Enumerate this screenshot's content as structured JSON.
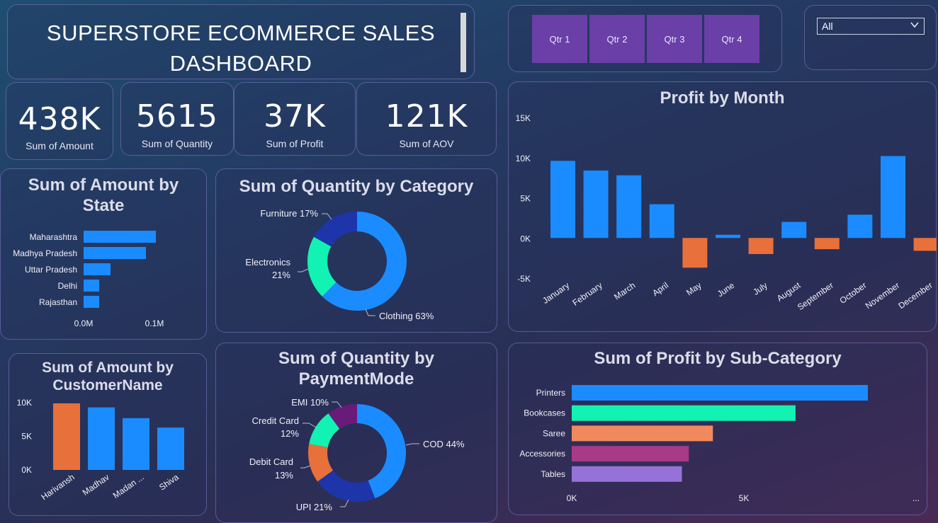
{
  "title": {
    "line1": "SUPERSTORE ECOMMERCE SALES",
    "line2": "DASHBOARD"
  },
  "quarters": [
    "Qtr 1",
    "Qtr 2",
    "Qtr 3",
    "Qtr 4"
  ],
  "filter": {
    "selected": "All"
  },
  "kpis": [
    {
      "value": "438K",
      "label": "Sum of Amount"
    },
    {
      "value": "5615",
      "label": "Sum of Quantity"
    },
    {
      "value": "37K",
      "label": "Sum of Profit"
    },
    {
      "value": "121K",
      "label": "Sum of AOV"
    }
  ],
  "colors": {
    "blue": "#1a8cff",
    "orange": "#e8703a",
    "teal": "#12f2b2",
    "navy": "#1d35a8",
    "purple": "#6a1a78",
    "salmon": "#f08a5d",
    "magenta": "#a83a86",
    "lavender": "#9672d8",
    "qtr": "#6a3fa8"
  },
  "chart_data": [
    {
      "type": "bar",
      "orientation": "horizontal",
      "title_line1": "Sum of Amount by",
      "title_line2": "State",
      "categories": [
        "Maharashtra",
        "Madhya Pradesh",
        "Uttar Pradesh",
        "Delhi",
        "Rajasthan"
      ],
      "values": [
        102000,
        88000,
        38000,
        22000,
        22000
      ],
      "xticks": [
        {
          "label": "0.0M",
          "value": 0
        },
        {
          "label": "0.1M",
          "value": 100000
        }
      ],
      "xlim": [
        0,
        100000
      ]
    },
    {
      "type": "pie",
      "donut": true,
      "title": "Sum of Quantity by Category",
      "slices": [
        {
          "name": "Clothing",
          "pct": 63,
          "label": "Clothing 63%",
          "color": "#1a8cff"
        },
        {
          "name": "Electronics",
          "pct": 21,
          "label_line1": "Electronics",
          "label_line2": "21%",
          "color": "#12f2b2"
        },
        {
          "name": "Furniture",
          "pct": 17,
          "label": "Furniture 17%",
          "color": "#1d35a8"
        }
      ]
    },
    {
      "type": "bar",
      "title": "Profit by Month",
      "categories": [
        "January",
        "February",
        "March",
        "April",
        "May",
        "June",
        "July",
        "August",
        "September",
        "October",
        "November",
        "December"
      ],
      "values": [
        9600,
        8400,
        7800,
        4200,
        -3700,
        400,
        -2000,
        2000,
        -1400,
        2900,
        10200,
        -1600
      ],
      "ylim": [
        -5000,
        15000
      ],
      "yticks": [
        {
          "label": "15K",
          "value": 15000
        },
        {
          "label": "10K",
          "value": 10000
        },
        {
          "label": "5K",
          "value": 5000
        },
        {
          "label": "0K",
          "value": 0
        },
        {
          "label": "-5K",
          "value": -5000
        }
      ]
    },
    {
      "type": "bar",
      "title_line1": "Sum of Amount by",
      "title_line2": "CustomerName",
      "categories": [
        "Harivansh",
        "Madhav",
        "Madan ...",
        "Shiva"
      ],
      "values": [
        9900,
        9300,
        7700,
        6300
      ],
      "highlight_index": 0,
      "ylim": [
        0,
        10000
      ],
      "yticks": [
        {
          "label": "10K",
          "value": 10000
        },
        {
          "label": "5K",
          "value": 5000
        },
        {
          "label": "0K",
          "value": 0
        }
      ]
    },
    {
      "type": "pie",
      "donut": true,
      "title_line1": "Sum of Quantity by",
      "title_line2": "PaymentMode",
      "slices": [
        {
          "name": "COD",
          "pct": 44,
          "label": "COD 44%",
          "color": "#1a8cff"
        },
        {
          "name": "UPI",
          "pct": 21,
          "label": "UPI 21%",
          "color": "#1d35a8"
        },
        {
          "name": "Debit Card",
          "pct": 13,
          "label_line1": "Debit Card",
          "label_line2": "13%",
          "color": "#e8703a"
        },
        {
          "name": "Credit Card",
          "pct": 12,
          "label_line1": "Credit Card",
          "label_line2": "12%",
          "color": "#12f2b2"
        },
        {
          "name": "EMI",
          "pct": 10,
          "label": "EMI 10%",
          "color": "#6a1a78"
        }
      ]
    },
    {
      "type": "bar",
      "orientation": "horizontal",
      "title": "Sum of Profit by Sub-Category",
      "categories": [
        "Printers",
        "Bookcases",
        "Saree",
        "Accessories",
        "Tables"
      ],
      "values": [
        8600,
        6500,
        4100,
        3400,
        3200
      ],
      "colors": [
        "#1a8cff",
        "#12f2b2",
        "#f08a5d",
        "#a83a86",
        "#9672d8"
      ],
      "xlim": [
        0,
        10000
      ],
      "xticks": [
        {
          "label": "0K",
          "value": 0
        },
        {
          "label": "5K",
          "value": 5000
        }
      ],
      "more_label": "..."
    }
  ]
}
